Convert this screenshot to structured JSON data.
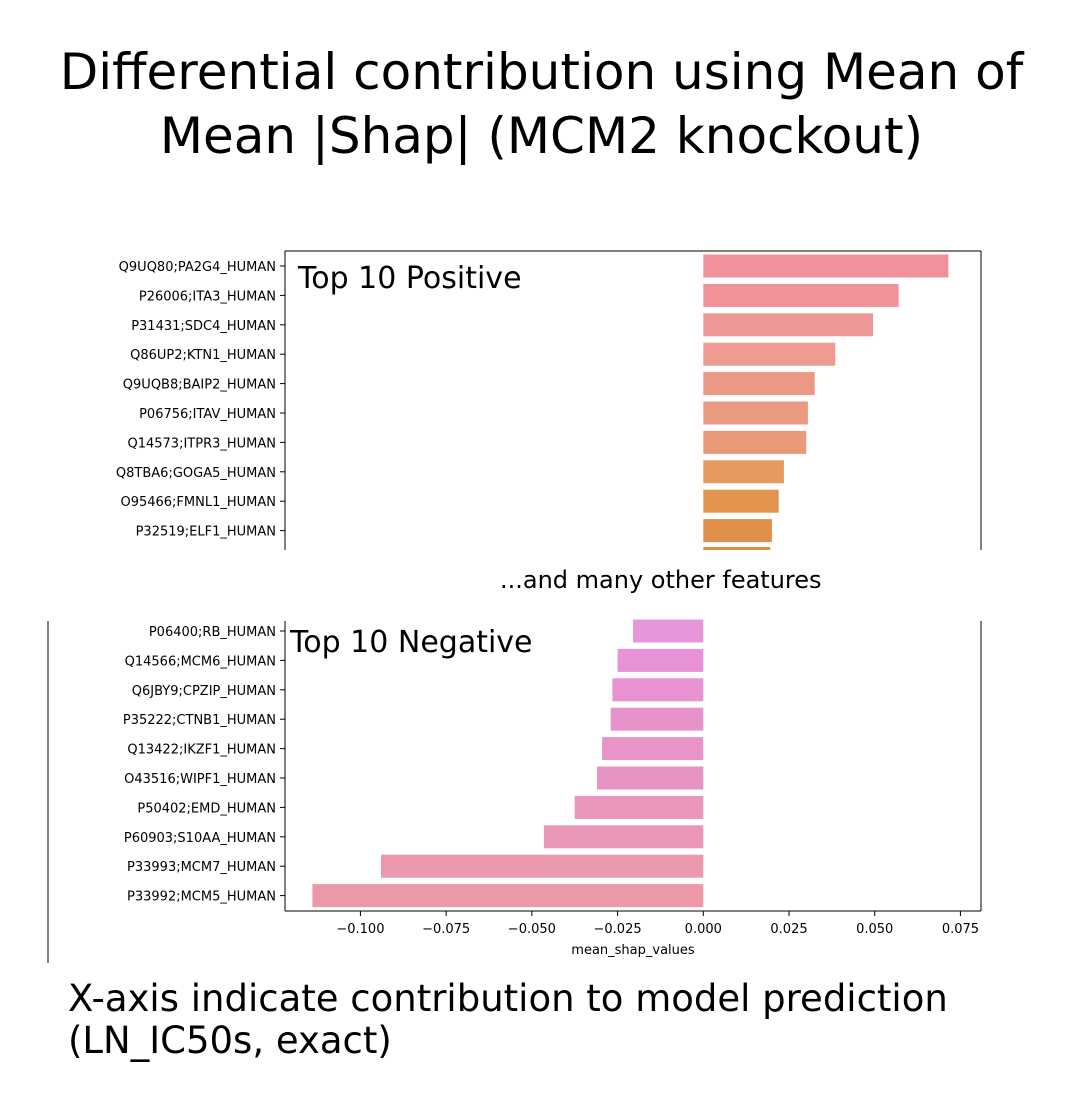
{
  "title": "Differential contribution using Mean of\nMean |Shap| (MCM2 knockout)",
  "separator_text": "...and many other features",
  "caption": "X-axis indicate contribution to model prediction\n(LN_IC50s, exact)",
  "chart_data": {
    "type": "bar",
    "orientation": "horizontal",
    "xlabel": "mean_shap_values",
    "xlim": [
      -0.122,
      0.081
    ],
    "xticks": [
      -0.1,
      -0.075,
      -0.05,
      -0.025,
      0.0,
      0.025,
      0.05,
      0.075
    ],
    "xtick_labels": [
      "−0.100",
      "−0.075",
      "−0.050",
      "−0.025",
      "0.000",
      "0.025",
      "0.050",
      "0.075"
    ],
    "panels": [
      {
        "label": "Top 10 Positive",
        "categories": [
          "Q9UQ80;PA2G4_HUMAN",
          "P26006;ITA3_HUMAN",
          "P31431;SDC4_HUMAN",
          "Q86UP2;KTN1_HUMAN",
          "Q9UQB8;BAIP2_HUMAN",
          "P06756;ITAV_HUMAN",
          "Q14573;ITPR3_HUMAN",
          "Q8TBA6;GOGA5_HUMAN",
          "O95466;FMNL1_HUMAN",
          "P32519;ELF1_HUMAN"
        ],
        "values": [
          0.0715,
          0.057,
          0.0495,
          0.0385,
          0.0325,
          0.0305,
          0.03,
          0.0235,
          0.022,
          0.02
        ],
        "colors": [
          "#f0919b",
          "#f0939a",
          "#ef9898",
          "#ee9b91",
          "#ec9a86",
          "#ea9a80",
          "#e99878",
          "#e59a60",
          "#e39550",
          "#e0904a"
        ]
      },
      {
        "label": "Top 10 Negative",
        "categories": [
          "P06400;RB_HUMAN",
          "Q14566;MCM6_HUMAN",
          "Q6JBY9;CPZIP_HUMAN",
          "P35222;CTNB1_HUMAN",
          "Q13422;IKZF1_HUMAN",
          "O43516;WIPF1_HUMAN",
          "P50402;EMD_HUMAN",
          "P60903;S10AA_HUMAN",
          "P33993;MCM7_HUMAN",
          "P33992;MCM5_HUMAN"
        ],
        "values": [
          -0.0205,
          -0.025,
          -0.0265,
          -0.027,
          -0.0295,
          -0.031,
          -0.0375,
          -0.0465,
          -0.094,
          -0.114
        ],
        "colors": [
          "#e896dc",
          "#e892d6",
          "#e892d2",
          "#e892cc",
          "#e894c8",
          "#e894c2",
          "#ea95bc",
          "#ea96b6",
          "#ec98ae",
          "#ec98a8"
        ]
      }
    ]
  }
}
